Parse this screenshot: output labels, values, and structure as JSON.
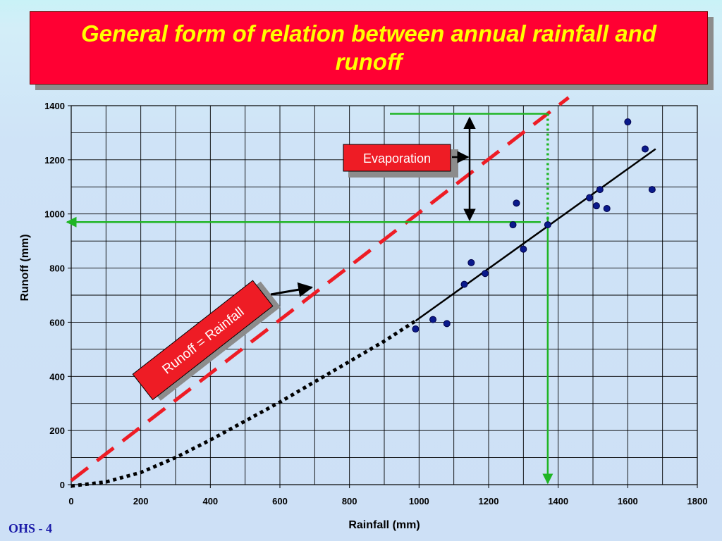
{
  "slide": {
    "title": "General form of relation between annual rainfall and runoff",
    "footer": "OHS - 4"
  },
  "colors": {
    "title_bg": "#ff0033",
    "title_text": "#ffff00",
    "points": "#0a1a8c",
    "equality_line": "#ee1c25",
    "guide_lines": "#1fb524",
    "label_box": "#ee1c25"
  },
  "chart_data": {
    "type": "scatter",
    "xlabel": "Rainfall (mm)",
    "ylabel": "Runoff (mm)",
    "xlim": [
      0,
      1800
    ],
    "ylim": [
      0,
      1400
    ],
    "xticks": [
      0,
      200,
      400,
      600,
      800,
      1000,
      1200,
      1400,
      1600,
      1800
    ],
    "yticks": [
      0,
      200,
      400,
      600,
      800,
      1000,
      1200,
      1400
    ],
    "grid": true,
    "points": [
      {
        "x": 990,
        "y": 575
      },
      {
        "x": 1040,
        "y": 610
      },
      {
        "x": 1080,
        "y": 595
      },
      {
        "x": 1130,
        "y": 740
      },
      {
        "x": 1150,
        "y": 820
      },
      {
        "x": 1190,
        "y": 780
      },
      {
        "x": 1270,
        "y": 960
      },
      {
        "x": 1280,
        "y": 1040
      },
      {
        "x": 1300,
        "y": 870
      },
      {
        "x": 1370,
        "y": 960
      },
      {
        "x": 1490,
        "y": 1060
      },
      {
        "x": 1510,
        "y": 1030
      },
      {
        "x": 1520,
        "y": 1090
      },
      {
        "x": 1540,
        "y": 1020
      },
      {
        "x": 1600,
        "y": 1340
      },
      {
        "x": 1650,
        "y": 1240
      },
      {
        "x": 1670,
        "y": 1090
      }
    ],
    "fit_line_solid": [
      [
        990,
        605
      ],
      [
        1680,
        1240
      ]
    ],
    "fit_curve_dotted": [
      [
        0,
        -5
      ],
      [
        100,
        10
      ],
      [
        200,
        45
      ],
      [
        300,
        100
      ],
      [
        400,
        165
      ],
      [
        500,
        235
      ],
      [
        600,
        305
      ],
      [
        700,
        380
      ],
      [
        800,
        455
      ],
      [
        900,
        530
      ],
      [
        990,
        605
      ]
    ],
    "equality_line": [
      [
        0,
        15
      ],
      [
        1430,
        1430
      ]
    ],
    "annotations": {
      "equality_label": "Runoff = Rainfall",
      "evaporation_label": "Evaporation"
    },
    "guides": {
      "rainfall_mark": 1370,
      "runoff_mark": 970,
      "equality_mark": 1370
    }
  }
}
